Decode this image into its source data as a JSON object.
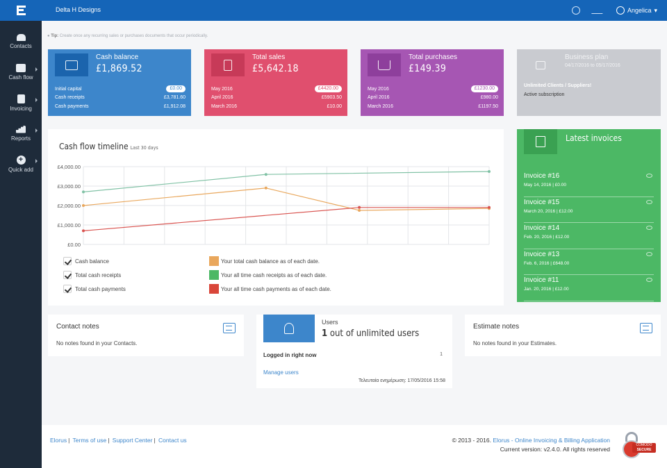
{
  "header": {
    "company": "Delta H Designs",
    "user": "Angelica"
  },
  "sidebar": {
    "items": [
      {
        "label": "Contacts",
        "icon": "contacts-icon"
      },
      {
        "label": "Cash flow",
        "icon": "cash-flow-icon"
      },
      {
        "label": "Invoicing",
        "icon": "invoicing-icon"
      },
      {
        "label": "Reports",
        "icon": "reports-icon"
      },
      {
        "label": "Quick add",
        "icon": "plus-icon"
      }
    ]
  },
  "tip": {
    "prefix": "Tip:",
    "text": "Create once any recurring sales or purchases documents that occur periodically."
  },
  "cards": {
    "cash": {
      "title": "Cash balance",
      "value": "£1,869.52",
      "rows": [
        {
          "label": "Initial capital",
          "value": "£0.00"
        },
        {
          "label": "Cash receipts",
          "value": "£3,781.60"
        },
        {
          "label": "Cash payments",
          "value": "£1,912.08"
        }
      ]
    },
    "sales": {
      "title": "Total sales",
      "value": "£5,642.18",
      "rows": [
        {
          "label": "May 2016",
          "value": "£4420.00"
        },
        {
          "label": "April 2016",
          "value": "£5903.50"
        },
        {
          "label": "March 2016",
          "value": "£10.00"
        }
      ]
    },
    "purchases": {
      "title": "Total purchases",
      "value": "£149.39",
      "rows": [
        {
          "label": "May 2016",
          "value": "£1230.00"
        },
        {
          "label": "April 2016",
          "value": "£980.00"
        },
        {
          "label": "March 2016",
          "value": "£1197.50"
        }
      ]
    },
    "plan": {
      "title": "Business plan",
      "dates": "04/17/2016 to 05/17/2016",
      "name": "Unlimited Clients / Suppliers!",
      "status": "Active subscription"
    }
  },
  "chart": {
    "title": "Cash flow timeline",
    "subtitle": "Last 30 days"
  },
  "chart_data": {
    "type": "line",
    "ylim": [
      0,
      4000
    ],
    "yticks": [
      "£0.00",
      "£1,000.00",
      "£2,000.00",
      "£3,000.00",
      "£4,000.00"
    ],
    "ytick_values": [
      0,
      1000,
      2000,
      3000,
      4000
    ],
    "grid": true,
    "x": [
      0,
      1,
      2,
      3,
      4,
      5,
      6,
      7,
      8,
      9,
      10
    ],
    "series": [
      {
        "name": "Total cash receipts",
        "color": "#7fc1a4",
        "points": [
          [
            0,
            2700
          ],
          [
            4.5,
            3600
          ],
          [
            10,
            3750
          ]
        ]
      },
      {
        "name": "Cash balance",
        "color": "#e9a75c",
        "points": [
          [
            0,
            2000
          ],
          [
            4.5,
            2900
          ],
          [
            6.8,
            1750
          ],
          [
            10,
            1850
          ]
        ]
      },
      {
        "name": "Total cash payments",
        "color": "#d9534f",
        "points": [
          [
            0,
            700
          ],
          [
            6.8,
            1900
          ],
          [
            10,
            1900
          ]
        ]
      }
    ],
    "legend": [
      {
        "check": "Cash balance",
        "color": "#e9a75c",
        "desc": "Your total cash balance as of each date."
      },
      {
        "check": "Total cash receipts",
        "color": "#4cb865",
        "desc": "Your all time cash receipts as of each date."
      },
      {
        "check": "Total cash payments",
        "color": "#d9463a",
        "desc": "Your all time cash payments as of each date."
      }
    ]
  },
  "invoices": {
    "title": "Latest invoices",
    "items": [
      {
        "name": "Invoice #16",
        "meta": "May 14, 2016 | £0.00"
      },
      {
        "name": "Invoice #15",
        "meta": "March 20, 2016 | £12.00"
      },
      {
        "name": "Invoice #14",
        "meta": "Feb. 20, 2016 | £12.00"
      },
      {
        "name": "Invoice #13",
        "meta": "Feb. 6, 2016 | £648.00"
      },
      {
        "name": "Invoice #11",
        "meta": "Jan. 20, 2016 | £12.00"
      }
    ]
  },
  "contact_notes": {
    "title": "Contact notes",
    "text": "No notes found in your Contacts."
  },
  "estimate_notes": {
    "title": "Estimate notes",
    "text": "No notes found in your Estimates."
  },
  "users": {
    "label": "Users",
    "count": "1",
    "count_suffix": "out of unlimited users",
    "logged": "Logged in right now",
    "logged_count": "1",
    "manage": "Manage users",
    "updated": "Τελευταία ενημέρωση: 17/05/2016 15:58"
  },
  "footer": {
    "links": [
      "Elorus",
      "Terms of use",
      "Support Center",
      "Contact us"
    ],
    "copyright": "© 2013 - 2016.",
    "app_link": "Elorus - Online Invoicing & Billing Application",
    "version": "Current version: v2.4.0. All rights reserved",
    "seal_line1": "COMODO",
    "seal_line2": "SECURE"
  }
}
